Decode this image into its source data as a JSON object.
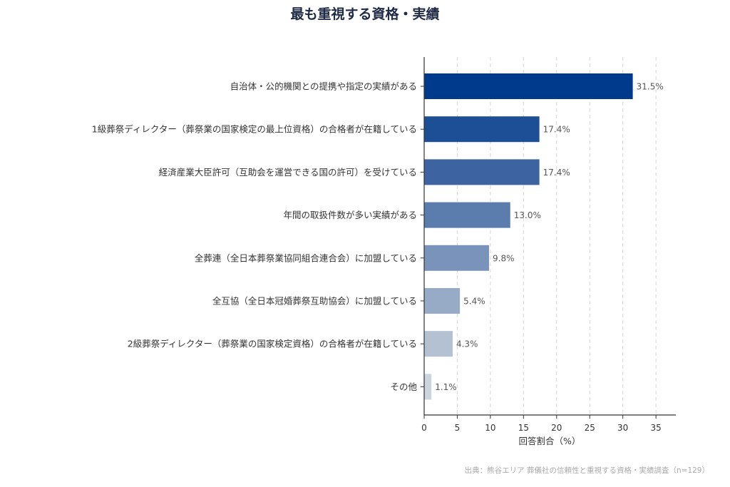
{
  "chart_data": {
    "type": "bar",
    "orientation": "horizontal",
    "title": "最も重視する資格・実績",
    "xlabel": "回答割合（%）",
    "ylabel": "",
    "xlim": [
      0,
      38
    ],
    "x_ticks": [
      0,
      5,
      10,
      15,
      20,
      25,
      30,
      35
    ],
    "grid": "vertical-dashed",
    "categories": [
      "自治体・公的機関との提携や指定の実績がある",
      "1級葬祭ディレクター（葬祭業の国家検定の最上位資格）の合格者が在籍している",
      "経済産業大臣許可（互助会を運営できる国の許可）を受けている",
      "年間の取扱件数が多い実績がある",
      "全葬連（全日本葬祭業協同組合連合会）に加盟している",
      "全互協（全日本冠婚葬祭互助協会）に加盟している",
      "2級葬祭ディレクター（葬祭業の国家検定資格）の合格者が在籍している",
      "その他"
    ],
    "values": [
      31.5,
      17.4,
      17.4,
      13.0,
      9.8,
      5.4,
      4.3,
      1.1
    ],
    "value_labels": [
      "31.5%",
      "17.4%",
      "17.4%",
      "13.0%",
      "9.8%",
      "5.4%",
      "4.3%",
      "1.1%"
    ],
    "colors": [
      "#003a8c",
      "#1d4f96",
      "#3d63a0",
      "#5a7dae",
      "#7993bb",
      "#98abc6",
      "#b3c1d2",
      "#cbd5de"
    ]
  },
  "source_note": "出典：熊谷エリア 葬儀社の信頼性と重視する資格・実績調査（n=129）"
}
